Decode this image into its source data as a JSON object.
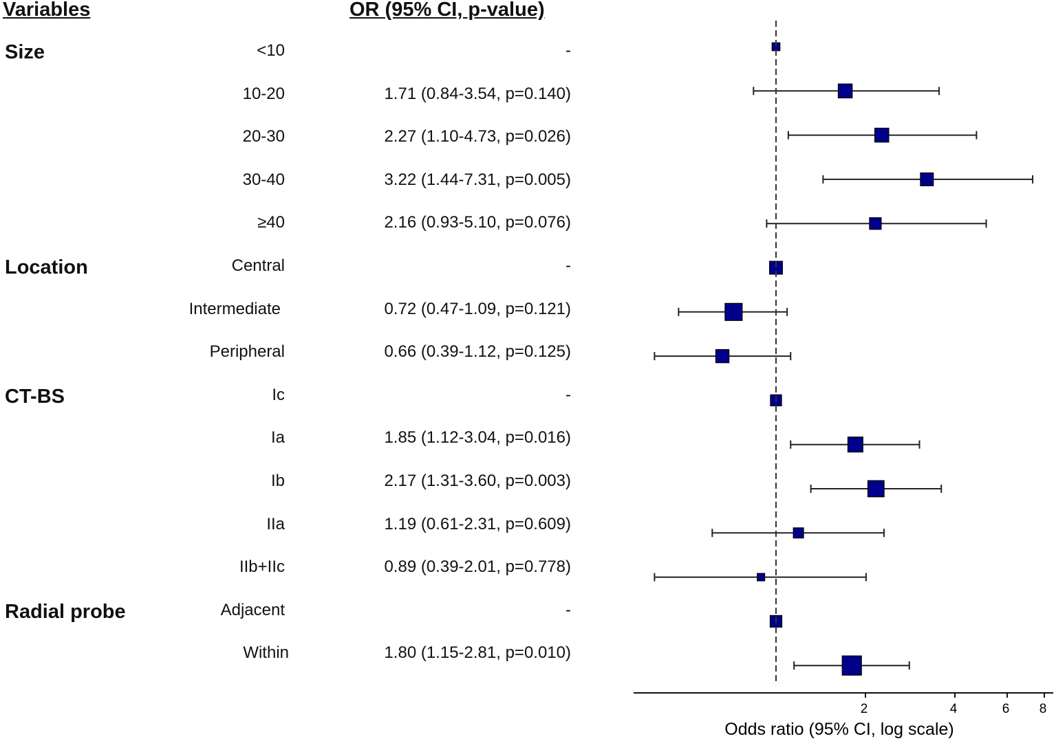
{
  "chart_data": {
    "type": "forest",
    "headers": {
      "variables": "Variables",
      "or_column": "OR (95% CI, p-value)"
    },
    "xlabel": "Odds ratio (95% CI, log scale)",
    "x_scale": "log",
    "xlim": [
      0.33,
      8.5
    ],
    "xticks": [
      2,
      4,
      6,
      8
    ],
    "xtick_labels": [
      "2",
      "4",
      "6",
      "8"
    ],
    "reference_line": 1,
    "groups": [
      {
        "name": "Size",
        "first_row": 0
      },
      {
        "name": "Location",
        "first_row": 5
      },
      {
        "name": "CT-BS",
        "first_row": 8
      },
      {
        "name": "Radial probe",
        "first_row": 13
      }
    ],
    "rows": [
      {
        "label": "<10",
        "text": "-",
        "or": 1,
        "lo": null,
        "hi": null,
        "weight": 0.25
      },
      {
        "label": "10-20",
        "text": "1.71 (0.84-3.54, p=0.140)",
        "or": 1.71,
        "lo": 0.84,
        "hi": 3.54,
        "weight": 0.65
      },
      {
        "label": "20-30",
        "text": "2.27 (1.10-4.73, p=0.026)",
        "or": 2.27,
        "lo": 1.1,
        "hi": 4.73,
        "weight": 0.65
      },
      {
        "label": "30-40",
        "text": "3.22 (1.44-7.31, p=0.005)",
        "or": 3.22,
        "lo": 1.44,
        "hi": 7.31,
        "weight": 0.58
      },
      {
        "label": "≥40",
        "text": "2.16 (0.93-5.10, p=0.076)",
        "or": 2.16,
        "lo": 0.93,
        "hi": 5.1,
        "weight": 0.5
      },
      {
        "label": "Central",
        "text": "-",
        "or": 1,
        "lo": null,
        "hi": null,
        "weight": 0.58
      },
      {
        "label": "Intermediate",
        "text": "0.72 (0.47-1.09, p=0.121)",
        "or": 0.72,
        "lo": 0.47,
        "hi": 1.09,
        "weight": 0.86
      },
      {
        "label": "Peripheral",
        "text": "0.66 (0.39-1.12, p=0.125)",
        "or": 0.66,
        "lo": 0.39,
        "hi": 1.12,
        "weight": 0.6
      },
      {
        "label": "Ic",
        "text": "-",
        "or": 1,
        "lo": null,
        "hi": null,
        "weight": 0.46
      },
      {
        "label": "Ia",
        "text": "1.85 (1.12-3.04, p=0.016)",
        "or": 1.85,
        "lo": 1.12,
        "hi": 3.04,
        "weight": 0.72
      },
      {
        "label": "Ib",
        "text": "2.17 (1.31-3.60, p=0.003)",
        "or": 2.17,
        "lo": 1.31,
        "hi": 3.6,
        "weight": 0.8
      },
      {
        "label": "IIa",
        "text": "1.19 (0.61-2.31, p=0.609)",
        "or": 1.19,
        "lo": 0.61,
        "hi": 2.31,
        "weight": 0.4
      },
      {
        "label": "IIb+IIc",
        "text": "0.89 (0.39-2.01, p=0.778)",
        "or": 0.89,
        "lo": 0.39,
        "hi": 2.01,
        "weight": 0.22
      },
      {
        "label": "Adjacent",
        "text": "-",
        "or": 1,
        "lo": null,
        "hi": null,
        "weight": 0.5
      },
      {
        "label": "Within",
        "text": "1.80 (1.15-2.81, p=0.010)",
        "or": 1.8,
        "lo": 1.15,
        "hi": 2.81,
        "weight": 1.0
      }
    ],
    "colors": {
      "box": "#00008b",
      "line": "#222222"
    }
  }
}
